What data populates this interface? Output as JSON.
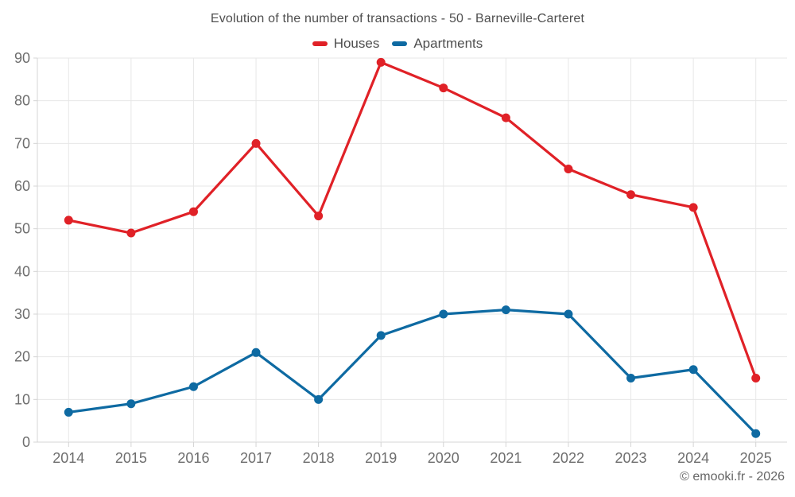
{
  "footer": {
    "copyright": "© emooki.fr - 2026"
  },
  "chart_data": {
    "type": "line",
    "title": "Evolution of the number of transactions - 50 - Barneville-Carteret",
    "categories": [
      "2014",
      "2015",
      "2016",
      "2017",
      "2018",
      "2019",
      "2020",
      "2021",
      "2022",
      "2023",
      "2024",
      "2025"
    ],
    "series": [
      {
        "name": "Houses",
        "color": "#e02127",
        "values": [
          52,
          49,
          54,
          70,
          53,
          89,
          83,
          76,
          64,
          58,
          55,
          15
        ]
      },
      {
        "name": "Apartments",
        "color": "#0e6aa2",
        "values": [
          7,
          9,
          13,
          21,
          10,
          25,
          30,
          31,
          30,
          15,
          17,
          2
        ]
      }
    ],
    "xlabel": "",
    "ylabel": "",
    "ylim": [
      0,
      90
    ],
    "ytick_step": 10,
    "yticks": [
      0,
      10,
      20,
      30,
      40,
      50,
      60,
      70,
      80,
      90
    ],
    "grid": true,
    "legend_position": "top",
    "marker": "circle",
    "colors": {
      "grid": "#e7e7e7",
      "axis": "#d4d4d4",
      "tick_label": "#6e6e6e",
      "title_text": "#4e4e4e"
    }
  }
}
